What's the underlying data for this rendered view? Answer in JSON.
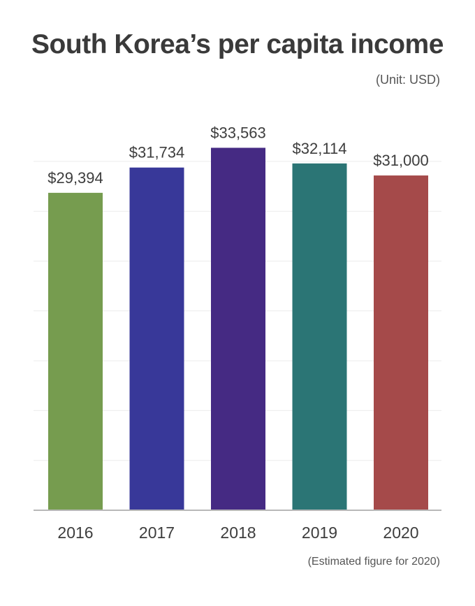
{
  "header": {
    "title": "South Korea’s per capita income",
    "unit": "(Unit: USD)"
  },
  "footer": {
    "note": "(Estimated figure for 2020)"
  },
  "chart_data": {
    "type": "bar",
    "title": "South Korea’s per capita income",
    "unit_label": "(Unit: USD)",
    "categories": [
      "2016",
      "2017",
      "2018",
      "2019",
      "2020"
    ],
    "values": [
      29394,
      31734,
      33563,
      32114,
      31000
    ],
    "value_labels": [
      "$29,394",
      "$31,734",
      "$33,563",
      "$32,114",
      "$31,000"
    ],
    "bar_colors": [
      "#769c4f",
      "#383899",
      "#452a83",
      "#2b7575",
      "#a54a4a"
    ],
    "xlabel": "",
    "ylabel": "",
    "grid": true,
    "axis_color": "#b8b8b8",
    "grid_color": "#ececec",
    "note": "(Estimated figure for 2020)"
  }
}
